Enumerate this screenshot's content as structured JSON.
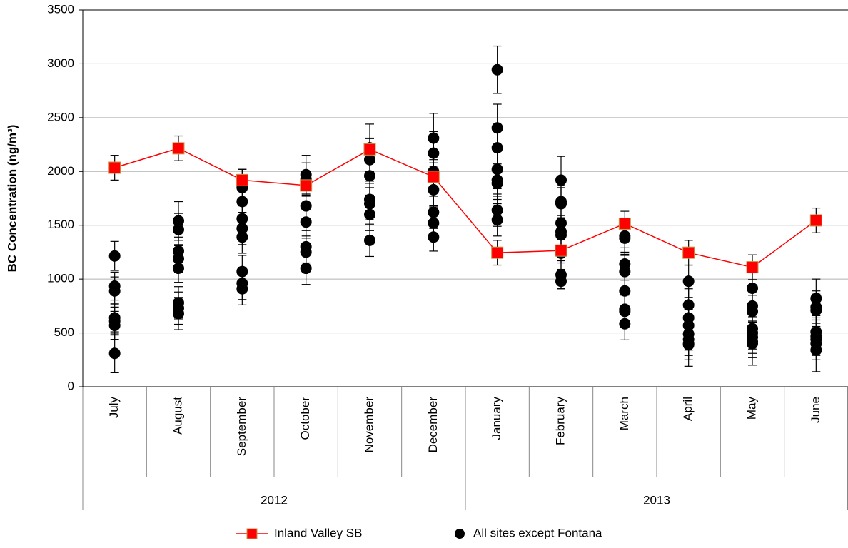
{
  "chart_data": {
    "type": "line-scatter",
    "y_label": "BC Concentration (ng/m³)",
    "categories": [
      "July",
      "August",
      "September",
      "October",
      "November",
      "December",
      "January",
      "February",
      "March",
      "April",
      "May",
      "June"
    ],
    "groups": [
      {
        "label": "2012",
        "count": 6
      },
      {
        "label": "2013",
        "count": 6
      }
    ],
    "ylim": [
      0,
      3500
    ],
    "yticks": [
      0,
      500,
      1000,
      1500,
      2000,
      2500,
      3000,
      3500
    ],
    "grid": true,
    "series": [
      {
        "name": "Inland Valley SB",
        "color": "#ff0000",
        "marker": "square",
        "values": [
          2035,
          2215,
          1920,
          1870,
          2205,
          1950,
          1245,
          1265,
          1515,
          1245,
          1110,
          1545
        ],
        "errors": [
          115,
          115,
          100,
          100,
          100,
          100,
          115,
          115,
          115,
          115,
          115,
          115
        ]
      },
      {
        "name": "All sites except Fontana",
        "color": "#000000",
        "marker": "circle",
        "values": [
          [
            1215,
            935,
            890,
            640,
            610,
            570,
            310
          ],
          [
            1540,
            1460,
            1260,
            1190,
            1100,
            780,
            730,
            680
          ],
          [
            1850,
            1720,
            1560,
            1470,
            1390,
            1070,
            960,
            910
          ],
          [
            1970,
            1930,
            1680,
            1530,
            1300,
            1250,
            1100
          ],
          [
            2220,
            2110,
            1960,
            1740,
            1700,
            1600,
            1360
          ],
          [
            2310,
            2170,
            2000,
            1960,
            1830,
            1620,
            1520,
            1390
          ],
          [
            2945,
            2405,
            2220,
            2020,
            1920,
            1890,
            1640,
            1550
          ],
          [
            1920,
            1720,
            1700,
            1520,
            1440,
            1410,
            1240,
            1040,
            980
          ],
          [
            1400,
            1380,
            1140,
            1070,
            890,
            720,
            700,
            585
          ],
          [
            980,
            760,
            640,
            570,
            490,
            440,
            400,
            390
          ],
          [
            915,
            750,
            700,
            540,
            500,
            460,
            420,
            400
          ],
          [
            820,
            740,
            710,
            510,
            470,
            440,
            400,
            340
          ]
        ],
        "errors": [
          [
            135,
            130,
            130,
            130,
            130,
            130,
            180
          ],
          [
            180,
            150,
            130,
            130,
            130,
            150,
            150,
            150
          ],
          [
            170,
            150,
            150,
            150,
            150,
            150,
            150,
            150
          ],
          [
            180,
            150,
            150,
            150,
            150,
            150,
            150
          ],
          [
            220,
            200,
            180,
            150,
            150,
            150,
            150
          ],
          [
            230,
            200,
            150,
            150,
            150,
            150,
            150,
            130
          ],
          [
            220,
            220,
            200,
            180,
            150,
            150,
            150,
            150
          ],
          [
            220,
            150,
            150,
            150,
            150,
            150,
            150,
            130,
            70
          ],
          [
            150,
            150,
            150,
            150,
            150,
            150,
            150,
            150
          ],
          [
            150,
            150,
            150,
            150,
            150,
            150,
            150,
            200
          ],
          [
            150,
            150,
            150,
            150,
            150,
            150,
            150,
            200
          ],
          [
            180,
            150,
            150,
            150,
            150,
            150,
            150,
            200
          ]
        ]
      }
    ]
  }
}
